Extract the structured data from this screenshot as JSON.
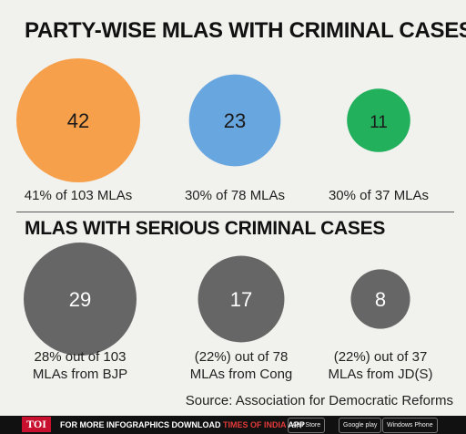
{
  "title_top": "PARTY-WISE MLAS WITH CRIMINAL CASES",
  "title_bottom": "MLAS WITH SERIOUS CRIMINAL CASES",
  "source": "Source: Association for Democratic Reforms",
  "chart_data": [
    {
      "type": "bubble",
      "title": "PARTY-WISE MLAS WITH CRIMINAL CASES",
      "values": [
        42,
        23,
        11
      ],
      "captions": [
        "41% of 103 MLAs",
        "30% of 78 MLAs",
        "30% of 37 MLAs"
      ],
      "colors": [
        "#f7a04b",
        "#68a6df",
        "#22b05d"
      ]
    },
    {
      "type": "bubble",
      "title": "MLAS WITH SERIOUS CRIMINAL CASES",
      "values": [
        29,
        17,
        8
      ],
      "captions": [
        [
          "28% out of 103",
          "MLAs from BJP"
        ],
        [
          "(22%) out of 78",
          "MLAs from Cong"
        ],
        [
          "(22%) out of 37",
          "MLAs from JD(S)"
        ]
      ],
      "colors": [
        "#666666",
        "#666666",
        "#666666"
      ]
    }
  ],
  "footer": {
    "logo": "TOI",
    "promo_white": "FOR MORE  INFOGRAPHICS DOWNLOAD ",
    "promo_red": "TIMES OF INDIA",
    "promo_app": " APP",
    "store1": "App Store",
    "store2": "Google play",
    "store3": "Windows Phone"
  }
}
